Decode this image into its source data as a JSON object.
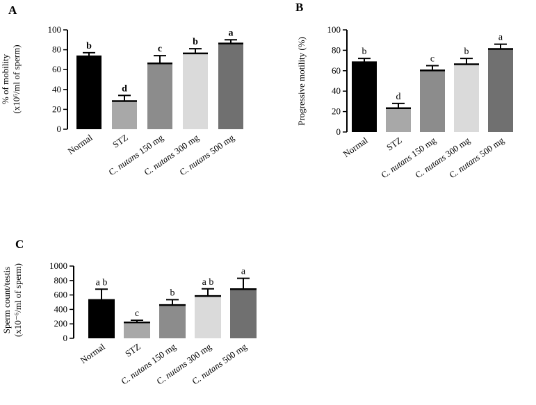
{
  "chart_data": [
    {
      "panel": "A",
      "type": "bar",
      "ylabel_line1": "% of mobility",
      "ylabel_line2": "(x10⁶/ml of sperm)",
      "ylim": [
        0,
        100
      ],
      "ticks": [
        0,
        20,
        40,
        60,
        80,
        100
      ],
      "categories": [
        {
          "pre": "",
          "italic": "",
          "post": "Normal"
        },
        {
          "pre": "",
          "italic": "",
          "post": "STZ"
        },
        {
          "pre": "C. ",
          "italic": "nutans",
          "post": " 150 mg"
        },
        {
          "pre": "C. ",
          "italic": "nutans",
          "post": " 300 mg"
        },
        {
          "pre": "C. ",
          "italic": "nutans",
          "post": " 500 mg"
        }
      ],
      "values": [
        74,
        29,
        67,
        77,
        87
      ],
      "errors": [
        3,
        5,
        7,
        4,
        3
      ],
      "letters": [
        "b",
        "d",
        "c",
        "b",
        "a"
      ],
      "colors": [
        "#000000",
        "#a8a8a8",
        "#8c8c8c",
        "#dadada",
        "#707070"
      ]
    },
    {
      "panel": "B",
      "type": "bar",
      "ylabel_line1": "Progressive motility (%)",
      "ylim": [
        0,
        100
      ],
      "ticks": [
        0,
        20,
        40,
        60,
        80,
        100
      ],
      "categories": [
        {
          "pre": "",
          "italic": "",
          "post": "Normal"
        },
        {
          "pre": "",
          "italic": "",
          "post": "STZ"
        },
        {
          "pre": "C. ",
          "italic": "nutans",
          "post": " 150 mg"
        },
        {
          "pre": "C. ",
          "italic": "nutans",
          "post": " 300 mg"
        },
        {
          "pre": "C. ",
          "italic": "nutans",
          "post": " 500 mg"
        }
      ],
      "values": [
        69,
        24,
        61,
        67,
        82
      ],
      "errors": [
        3,
        4,
        4,
        5,
        4
      ],
      "letters": [
        "b",
        "d",
        "c",
        "b",
        "a"
      ],
      "colors": [
        "#000000",
        "#a8a8a8",
        "#8c8c8c",
        "#dadada",
        "#707070"
      ]
    },
    {
      "panel": "C",
      "type": "bar",
      "ylabel_line1": "Sperm count/testis",
      "ylabel_line2": "(x10⁻⁶/ml of sperm)",
      "ylim": [
        0,
        1000
      ],
      "ticks": [
        0,
        200,
        400,
        600,
        800,
        1000
      ],
      "categories": [
        {
          "pre": "",
          "italic": "",
          "post": "Normal"
        },
        {
          "pre": "",
          "italic": "",
          "post": "STZ"
        },
        {
          "pre": "C. ",
          "italic": "nutans",
          "post": " 150 mg"
        },
        {
          "pre": "C. ",
          "italic": "nutans",
          "post": " 300 mg"
        },
        {
          "pre": "C. ",
          "italic": "nutans",
          "post": " 500 mg"
        }
      ],
      "values": [
        540,
        230,
        470,
        595,
        690
      ],
      "errors": [
        140,
        20,
        65,
        90,
        140
      ],
      "letters": [
        "a b",
        "c",
        "b",
        "a b",
        "a"
      ],
      "colors": [
        "#000000",
        "#a8a8a8",
        "#8c8c8c",
        "#dadada",
        "#707070"
      ]
    }
  ]
}
